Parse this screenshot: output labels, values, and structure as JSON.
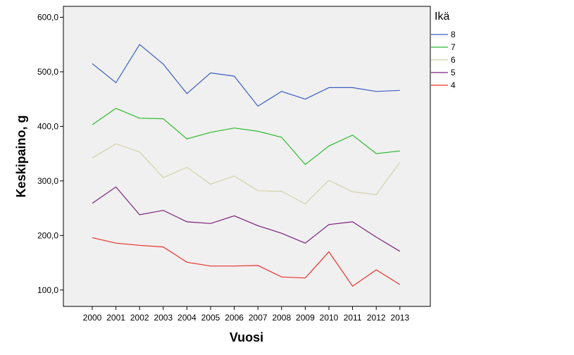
{
  "chart_data": {
    "type": "line",
    "xlabel": "Vuosi",
    "ylabel": "Keskipaino, g",
    "ylim": [
      70,
      620
    ],
    "yticks": [
      "100,0",
      "200,0",
      "300,0",
      "400,0",
      "500,0",
      "600,0"
    ],
    "x": [
      "2000",
      "2001",
      "2002",
      "2003",
      "2004",
      "2005",
      "2006",
      "2007",
      "2008",
      "2009",
      "2010",
      "2011",
      "2012",
      "2013"
    ],
    "legend": {
      "title": "Ikä",
      "placement": "right"
    },
    "grid": false,
    "series": [
      {
        "name": "8",
        "color": "#3b5fbf",
        "values": [
          515,
          480,
          550,
          514,
          460,
          498,
          492,
          437,
          464,
          450,
          471,
          471,
          464,
          466
        ]
      },
      {
        "name": "7",
        "color": "#2eb82e",
        "values": [
          403,
          433,
          415,
          414,
          377,
          389,
          397,
          391,
          380,
          330,
          364,
          384,
          350,
          355
        ]
      },
      {
        "name": "6",
        "color": "#d2d2a8",
        "values": [
          342,
          368,
          353,
          306,
          325,
          294,
          309,
          282,
          281,
          258,
          301,
          280,
          275,
          334
        ]
      },
      {
        "name": "5",
        "color": "#7a1f7a",
        "values": [
          259,
          289,
          238,
          246,
          225,
          222,
          236,
          218,
          204,
          186,
          220,
          225,
          197,
          171
        ]
      },
      {
        "name": "4",
        "color": "#e8312b",
        "values": [
          196,
          186,
          182,
          179,
          151,
          144,
          144,
          145,
          124,
          122,
          170,
          107,
          137,
          110
        ]
      }
    ]
  }
}
